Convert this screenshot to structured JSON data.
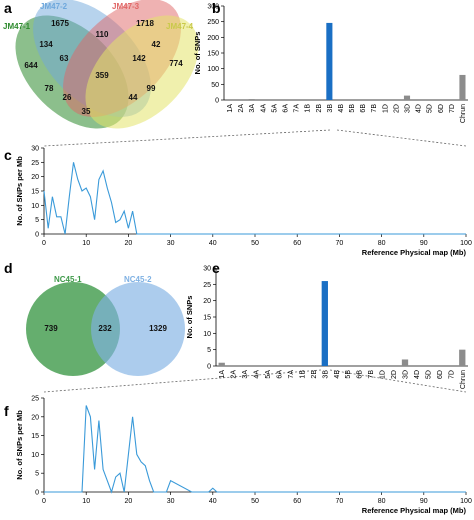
{
  "panels": {
    "a": "a",
    "b": "b",
    "c": "c",
    "d": "d",
    "e": "e",
    "f": "f"
  },
  "venn4": {
    "sets": [
      {
        "name": "JM47-1",
        "color": "#2e8b2e"
      },
      {
        "name": "JM47-2",
        "color": "#6fa8dc"
      },
      {
        "name": "JM47-3",
        "color": "#e06666"
      },
      {
        "name": "JM47-4",
        "color": "#c9c94a"
      }
    ],
    "regions": {
      "only1": "644",
      "only2": "1675",
      "only3": "1718",
      "only4": "774",
      "r12": "134",
      "r23": "110",
      "r34": "42",
      "r14": "35",
      "r13": "78",
      "r24": "99",
      "r123": "63",
      "r234": "142",
      "r134": "26",
      "r124": "44",
      "r1234": "359"
    }
  },
  "venn2": {
    "sets": [
      {
        "name": "NC45-1",
        "color": "#3f9a4a"
      },
      {
        "name": "NC45-2",
        "color": "#7fb1e3"
      }
    ],
    "regions": {
      "only1": "739",
      "both": "232",
      "only2": "1329"
    }
  },
  "chart_data": [
    {
      "id": "b",
      "type": "bar",
      "categories": [
        "1A",
        "2A",
        "3A",
        "4A",
        "5A",
        "6A",
        "7A",
        "1B",
        "2B",
        "3B",
        "4B",
        "5B",
        "6B",
        "7B",
        "1D",
        "2D",
        "3D",
        "4D",
        "5D",
        "6D",
        "7D",
        "Chrun"
      ],
      "values": [
        0,
        0,
        3,
        0,
        0,
        0,
        0,
        0,
        0,
        246,
        0,
        0,
        0,
        0,
        0,
        0,
        14,
        0,
        0,
        0,
        0,
        80
      ],
      "highlight": "3B",
      "highlight_color": "#1a6fc4",
      "bar_color": "#8c8c8c",
      "ylabel": "No. of SNPs",
      "ylim": [
        0,
        300
      ],
      "yticks": [
        "0",
        "50",
        "100",
        "150",
        "200",
        "250",
        "300"
      ]
    },
    {
      "id": "c",
      "type": "line",
      "x": [
        0,
        1,
        2,
        3,
        4,
        5,
        6,
        7,
        8,
        9,
        10,
        11,
        12,
        13,
        14,
        15,
        16,
        17,
        18,
        19,
        20,
        21,
        22,
        23,
        24,
        25,
        30,
        40,
        50,
        60,
        70,
        80,
        90,
        100
      ],
      "y": [
        15,
        2,
        13,
        6,
        6,
        0,
        13,
        25,
        19,
        15,
        16,
        13,
        5,
        19,
        22,
        16,
        11,
        4,
        5,
        8,
        2,
        8,
        0,
        0,
        0,
        0,
        0,
        0,
        0,
        0,
        0,
        0,
        0,
        0
      ],
      "line_color": "#3a9ad9",
      "xlabel": "Reference Physical map (Mb)",
      "ylabel": "No. of SNPs per Mb",
      "xlim": [
        0,
        100
      ],
      "ylim": [
        0,
        30
      ],
      "xticks": [
        "0",
        "10",
        "20",
        "30",
        "40",
        "50",
        "60",
        "70",
        "80",
        "90",
        "100"
      ],
      "yticks": [
        "0",
        "5",
        "10",
        "15",
        "20",
        "25",
        "30"
      ]
    },
    {
      "id": "e",
      "type": "bar",
      "categories": [
        "1A",
        "2A",
        "3A",
        "4A",
        "5A",
        "6A",
        "7A",
        "1B",
        "2B",
        "3B",
        "4B",
        "5B",
        "6B",
        "7B",
        "1D",
        "2D",
        "3D",
        "4D",
        "5D",
        "6D",
        "7D",
        "Chrun"
      ],
      "values": [
        1,
        0,
        0,
        0,
        0,
        0,
        0,
        0,
        0,
        26,
        0,
        0,
        0,
        0,
        0,
        0,
        2,
        0,
        0,
        0,
        0,
        5
      ],
      "highlight": "3B",
      "highlight_color": "#1a6fc4",
      "bar_color": "#8c8c8c",
      "ylabel": "No. of SNPs",
      "ylim": [
        0,
        30
      ],
      "yticks": [
        "0",
        "5",
        "10",
        "15",
        "20",
        "25",
        "30"
      ]
    },
    {
      "id": "f",
      "type": "line",
      "x": [
        0,
        5,
        9,
        10,
        11,
        12,
        13,
        14,
        15,
        16,
        17,
        18,
        19,
        20,
        21,
        22,
        23,
        24,
        25,
        26,
        27,
        28,
        29,
        30,
        35,
        39,
        40,
        41,
        45,
        50,
        60,
        70,
        80,
        90,
        100
      ],
      "y": [
        0,
        0,
        0,
        23,
        20,
        6,
        19,
        6,
        3,
        0,
        4,
        5,
        0,
        10,
        20,
        10,
        8,
        7,
        3,
        0,
        0,
        0,
        0,
        3,
        0,
        0,
        1,
        0,
        0,
        0,
        0,
        0,
        0,
        0,
        0
      ],
      "line_color": "#3a9ad9",
      "xlabel": "Reference Physical map (Mb)",
      "ylabel": "No. of SNPs per Mb",
      "xlim": [
        0,
        100
      ],
      "ylim": [
        0,
        25
      ],
      "xticks": [
        "0",
        "10",
        "20",
        "30",
        "40",
        "50",
        "60",
        "70",
        "80",
        "90",
        "100"
      ],
      "yticks": [
        "0",
        "5",
        "10",
        "15",
        "20",
        "25"
      ]
    }
  ]
}
